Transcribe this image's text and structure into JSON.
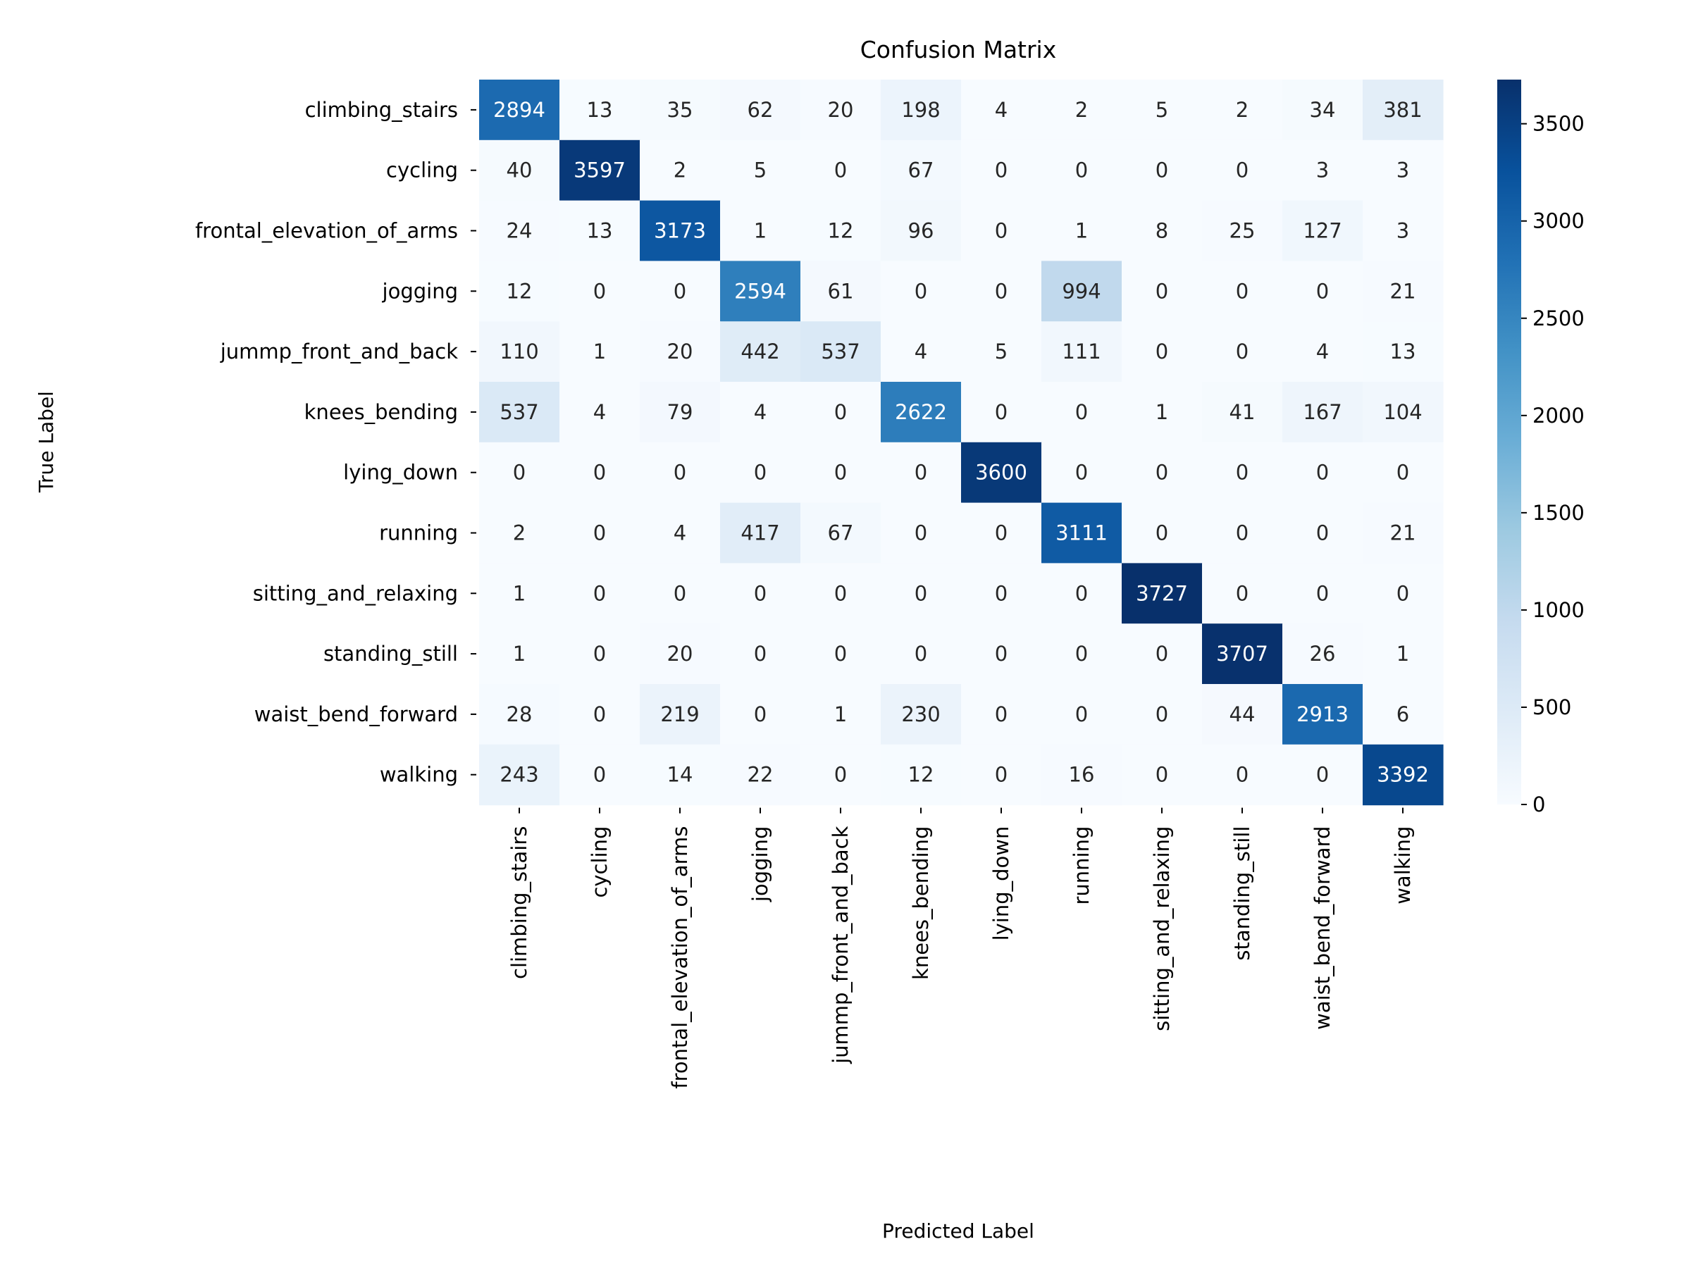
{
  "chart_data": {
    "type": "heatmap",
    "title": "Confusion Matrix",
    "xlabel": "Predicted Label",
    "ylabel": "True Label",
    "colormap": "Blues",
    "color_range": [
      0,
      3727
    ],
    "colorbar_ticks": [
      0,
      500,
      1000,
      1500,
      2000,
      2500,
      3000,
      3500
    ],
    "x_categories": [
      "climbing_stairs",
      "cycling",
      "frontal_elevation_of_arms",
      "jogging",
      "jummp_front_and_back",
      "knees_bending",
      "lying_down",
      "running",
      "sitting_and_relaxing",
      "standing_still",
      "waist_bend_forward",
      "walking"
    ],
    "y_categories": [
      "climbing_stairs",
      "cycling",
      "frontal_elevation_of_arms",
      "jogging",
      "jummp_front_and_back",
      "knees_bending",
      "lying_down",
      "running",
      "sitting_and_relaxing",
      "standing_still",
      "waist_bend_forward",
      "walking"
    ],
    "values": [
      [
        2894,
        13,
        35,
        62,
        20,
        198,
        4,
        2,
        5,
        2,
        34,
        381
      ],
      [
        40,
        3597,
        2,
        5,
        0,
        67,
        0,
        0,
        0,
        0,
        3,
        3
      ],
      [
        24,
        13,
        3173,
        1,
        12,
        96,
        0,
        1,
        8,
        25,
        127,
        3
      ],
      [
        12,
        0,
        0,
        2594,
        61,
        0,
        0,
        994,
        0,
        0,
        0,
        21
      ],
      [
        110,
        1,
        20,
        442,
        537,
        4,
        5,
        111,
        0,
        0,
        4,
        13
      ],
      [
        537,
        4,
        79,
        4,
        0,
        2622,
        0,
        0,
        1,
        41,
        167,
        104
      ],
      [
        0,
        0,
        0,
        0,
        0,
        0,
        3600,
        0,
        0,
        0,
        0,
        0
      ],
      [
        2,
        0,
        4,
        417,
        67,
        0,
        0,
        3111,
        0,
        0,
        0,
        21
      ],
      [
        1,
        0,
        0,
        0,
        0,
        0,
        0,
        0,
        3727,
        0,
        0,
        0
      ],
      [
        1,
        0,
        20,
        0,
        0,
        0,
        0,
        0,
        0,
        3707,
        26,
        1
      ],
      [
        28,
        0,
        219,
        0,
        1,
        230,
        0,
        0,
        0,
        44,
        2913,
        6
      ],
      [
        243,
        0,
        14,
        22,
        0,
        12,
        0,
        16,
        0,
        0,
        0,
        3392
      ]
    ]
  }
}
